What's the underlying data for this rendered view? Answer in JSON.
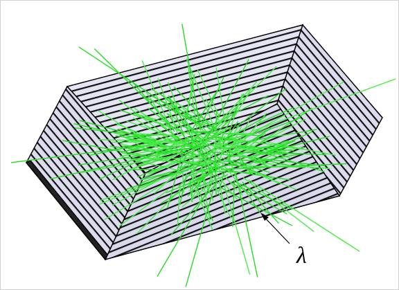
{
  "label": "λ"
}
